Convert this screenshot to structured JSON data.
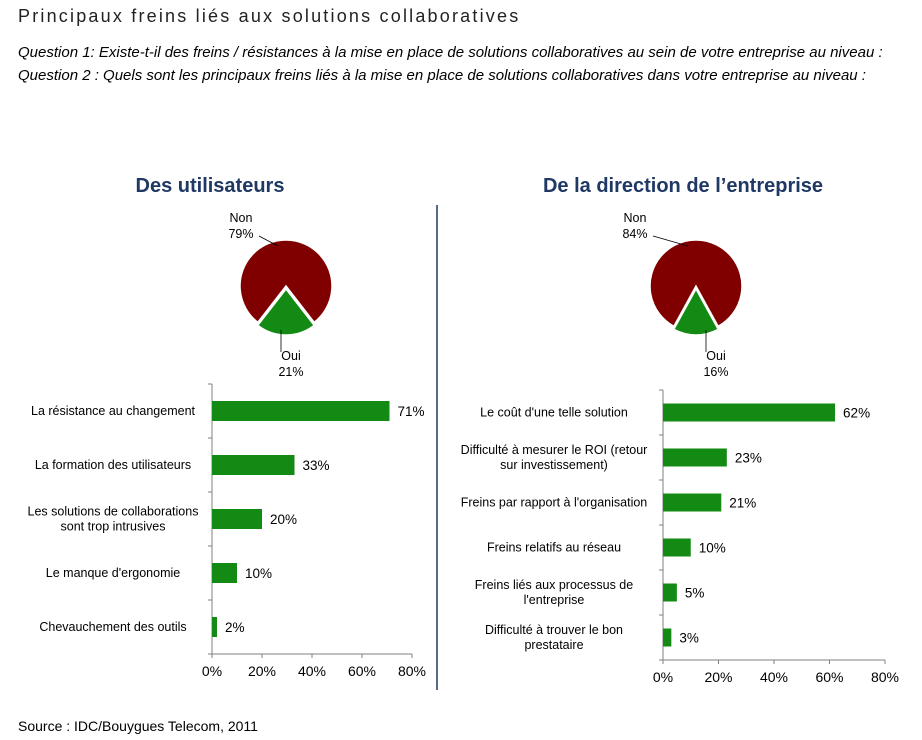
{
  "page": {
    "title": "Principaux freins liés aux solutions collaboratives",
    "question1": "Question 1: Existe-t-il des freins / résistances à la mise en place de solutions collaboratives au sein de votre entreprise au niveau :",
    "question2": "Question 2 : Quels sont les principaux freins liés à la mise en place de solutions collaboratives dans votre entreprise au niveau :",
    "source": "Source : IDC/Bouygues Telecom, 2011"
  },
  "colors": {
    "no": "#800000",
    "yes": "#138a13",
    "bar": "#138a13",
    "title": "#1f3864"
  },
  "chart_data": [
    {
      "type": "pie",
      "title": "Des utilisateurs",
      "slices": [
        {
          "label": "Non",
          "value": 79,
          "display": "79%"
        },
        {
          "label": "Oui",
          "value": 21,
          "display": "21%"
        }
      ]
    },
    {
      "type": "bar",
      "orientation": "horizontal",
      "title": "",
      "categories": [
        [
          "La résistance au changement"
        ],
        [
          "La formation des utilisateurs"
        ],
        [
          "Les solutions de collaborations",
          "sont trop intrusives"
        ],
        [
          "Le manque d'ergonomie"
        ],
        [
          "Chevauchement des outils"
        ]
      ],
      "values": [
        71,
        33,
        20,
        10,
        2
      ],
      "value_labels": [
        "71%",
        "33%",
        "20%",
        "10%",
        "2%"
      ],
      "xlim": [
        0,
        80
      ],
      "xticks": [
        "0%",
        "20%",
        "40%",
        "60%",
        "80%"
      ]
    },
    {
      "type": "pie",
      "title": "De la direction de l’entreprise",
      "slices": [
        {
          "label": "Non",
          "value": 84,
          "display": "84%"
        },
        {
          "label": "Oui",
          "value": 16,
          "display": "16%"
        }
      ]
    },
    {
      "type": "bar",
      "orientation": "horizontal",
      "title": "",
      "categories": [
        [
          "Le coût d'une telle solution"
        ],
        [
          "Difficulté à mesurer le ROI (retour",
          "sur investissement)"
        ],
        [
          "Freins par rapport à l'organisation"
        ],
        [
          "Freins relatifs au réseau"
        ],
        [
          "Freins liés aux processus de",
          "l'entreprise"
        ],
        [
          "Difficulté à trouver le bon",
          "prestataire"
        ]
      ],
      "values": [
        62,
        23,
        21,
        10,
        5,
        3
      ],
      "value_labels": [
        "62%",
        "23%",
        "21%",
        "10%",
        "5%",
        "3%"
      ],
      "xlim": [
        0,
        80
      ],
      "xticks": [
        "0%",
        "20%",
        "40%",
        "60%",
        "80%"
      ]
    }
  ]
}
